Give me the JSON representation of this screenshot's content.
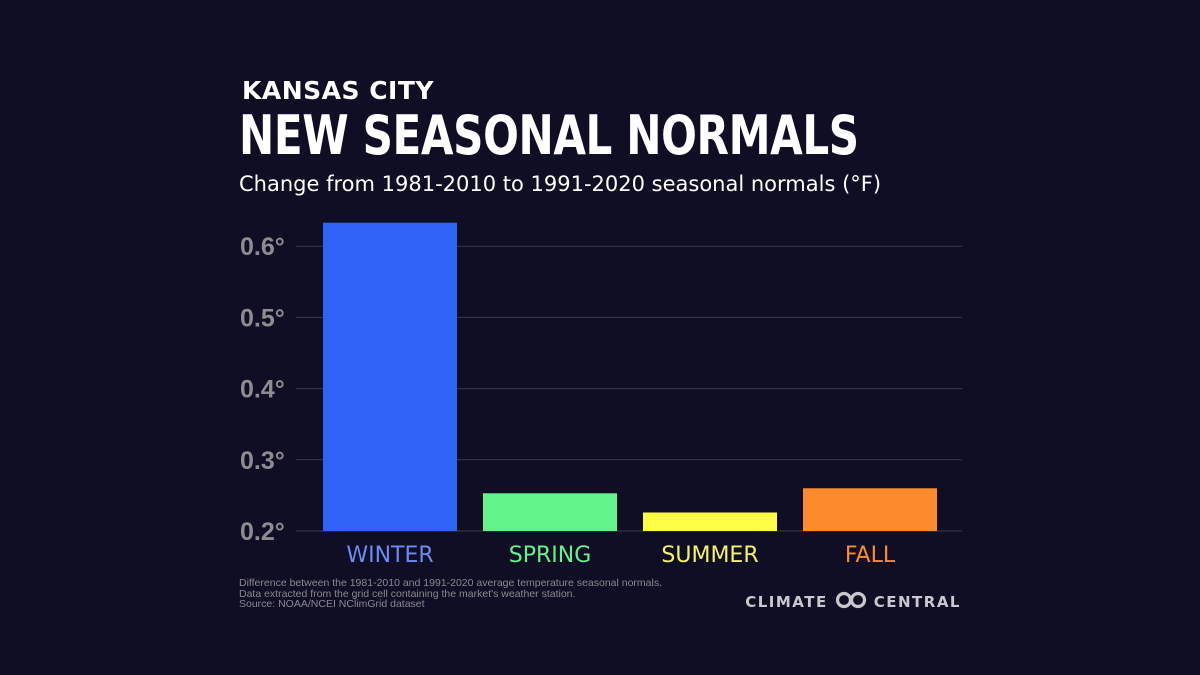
{
  "header": {
    "location": "KANSAS CITY",
    "title": "NEW SEASONAL NORMALS",
    "subtitle": "Change from 1981-2010 to 1991-2020 seasonal normals (°F)"
  },
  "footer": {
    "notes": [
      "Difference between the 1981-2010 and 1991-2020 average temperature seasonal normals.",
      "Data extracted from the grid cell containing the market's weather station.",
      "Source: NOAA/NCEI NClimGrid dataset"
    ],
    "brand_left": "CLIMATE",
    "brand_right": "CENTRAL",
    "brand_icon": "climate-central-logo-icon"
  },
  "chart_data": {
    "type": "bar",
    "title": "NEW SEASONAL NORMALS",
    "subtitle": "Change from 1981-2010 to 1991-2020 seasonal normals (°F)",
    "xlabel": "",
    "ylabel": "",
    "categories": [
      "WINTER",
      "SPRING",
      "SUMMER",
      "FALL"
    ],
    "values": [
      0.633,
      0.253,
      0.226,
      0.26
    ],
    "colors": [
      "#2f62f6",
      "#62f48a",
      "#fdfd45",
      "#fd8a2c"
    ],
    "label_colors": [
      "#6a8cf5",
      "#62f48a",
      "#f4f36a",
      "#fd8a2c"
    ],
    "ylim": [
      0.2,
      0.64
    ],
    "yticks": [
      0.2,
      0.3,
      0.4,
      0.5,
      0.6
    ],
    "ytick_labels": [
      "0.2°",
      "0.3°",
      "0.4°",
      "0.5°",
      "0.6°"
    ],
    "grid": true,
    "legend": "none",
    "background": "#0f0e24",
    "grid_color": "#3a3950"
  }
}
